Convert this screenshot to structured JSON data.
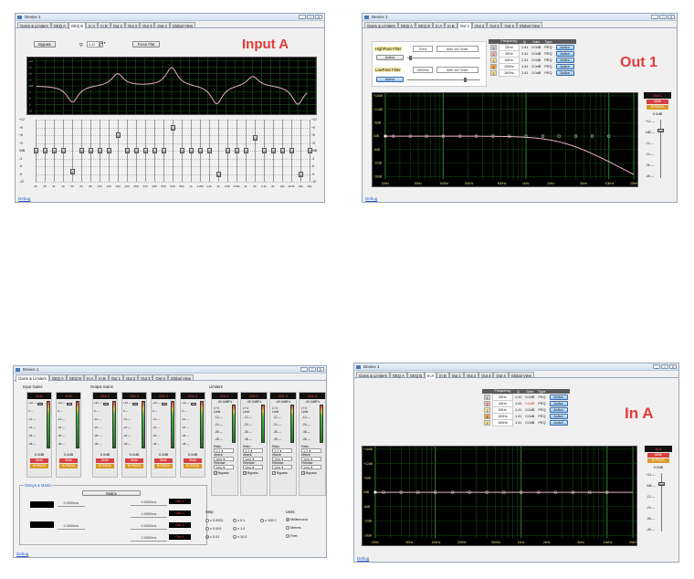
{
  "window_title": "Device 1",
  "title_buttons": [
    "_",
    "□",
    "X"
  ],
  "tabs": [
    "Gains & Limiters",
    "GEQ A",
    "GEQ B",
    "In A",
    "In B",
    "Out 1",
    "Out 2",
    "Out 3",
    "Out 4",
    "Global View"
  ],
  "debug_label": "Debug",
  "panel_geqb": {
    "big_title": "Input A",
    "bypass_label": "Bypass",
    "q_label": "Q:",
    "q_value": "4.32",
    "force_flat_label": "Force Flat",
    "graph_y_labels": [
      "+12",
      "+9",
      "+6",
      "+3",
      "0dB",
      "-3",
      "-6",
      "-9",
      "-12"
    ],
    "slider_scale_left": [
      "+12",
      "+9",
      "+6",
      "+3",
      "0dB",
      "-3",
      "-6",
      "-9",
      "-12"
    ],
    "slider_scale_right": [
      "+12",
      "+9",
      "+6",
      "+3",
      "0dB",
      "-3",
      "-6",
      "-9",
      "-12"
    ],
    "freq_labels": [
      "20",
      "25",
      "31",
      "40",
      "50",
      "63",
      "80",
      "100",
      "125",
      "160",
      "200",
      "250",
      "315",
      "400",
      "500",
      "630",
      "800",
      "1k",
      "1.25k",
      "1.6k",
      "2k",
      "2.5k",
      "3.15k",
      "4k",
      "5k",
      "6.3k",
      "8k",
      "10k",
      "12.5k",
      "16k",
      "20k"
    ],
    "slider_gains": [
      0,
      0,
      0,
      0,
      -8,
      0,
      0,
      0,
      0,
      6,
      0,
      0,
      0,
      0,
      0,
      9,
      0,
      0,
      0,
      0,
      -9,
      0,
      0,
      0,
      5,
      0,
      0,
      0,
      0,
      -9,
      0
    ]
  },
  "panel_out1": {
    "big_title": "Out 1",
    "hp_label": "HighPass Filter",
    "hp_freq": "20Hz",
    "hp_order": "6dB 1st Order",
    "hp_active": "Active",
    "lp_label": "LowPass Filter",
    "lp_freq": "2800Hz",
    "lp_order": "6dB 1st Order",
    "lp_active": "Active",
    "table_headers": [
      "",
      "Frequency",
      "Q",
      "Gain",
      "Type",
      ""
    ],
    "rows": [
      {
        "n": "1",
        "freq": "25Hz",
        "q": "1.41",
        "gain": "0.0dB",
        "type": "PEQ",
        "btn": "Active",
        "color": "#cccccc"
      },
      {
        "n": "2",
        "freq": "40Hz",
        "q": "1.41",
        "gain": "0.0dB",
        "type": "PEQ",
        "btn": "Active",
        "color": "#f2b3b3"
      },
      {
        "n": "3",
        "freq": "63Hz",
        "q": "1.41",
        "gain": "0.0dB",
        "type": "PEQ",
        "btn": "Active",
        "color": "#f4e3a3"
      },
      {
        "n": "4",
        "freq": "100Hz",
        "q": "1.41",
        "gain": "0.0dB",
        "type": "PEQ",
        "btn": "Active",
        "color": "#f0a040"
      },
      {
        "n": "5",
        "freq": "160Hz",
        "q": "1.41",
        "gain": "0.0dB",
        "type": "PEQ",
        "btn": "Active",
        "color": "#f5e090"
      }
    ],
    "graph_y_labels": [
      "+18dB",
      "+12dB",
      "+6dB",
      "0dB",
      "-6dB",
      "-12dB",
      "-18dB"
    ],
    "graph_x_labels": [
      "20Hz",
      "50Hz",
      "100Hz",
      "200Hz",
      "500Hz",
      "1kHz",
      "2kHz",
      "5kHz",
      "10kHz",
      "20kHz"
    ],
    "ch_label": "Out 1",
    "mute": "Mute",
    "bypass": "BYPASS",
    "gain_value": "0.0dB",
    "fader_scale": [
      "+12",
      "0dB",
      "-12",
      "-24",
      "-36",
      "-48"
    ]
  },
  "panel_gains": {
    "input_gains_label": "Input Gains",
    "output_gains_label": "Output Gains",
    "limiters_label": "Limiters",
    "inputs": [
      {
        "name": "In A",
        "gain": "0.0dB"
      },
      {
        "name": "In B",
        "gain": "0.0dB"
      }
    ],
    "outputs": [
      {
        "name": "Out 1",
        "gain": "0.0dB"
      },
      {
        "name": "Out 2",
        "gain": "0.0dB"
      },
      {
        "name": "Out 3",
        "gain": "0.0dB"
      },
      {
        "name": "Out 4",
        "gain": "0.0dB"
      }
    ],
    "limiters": [
      {
        "name": "Out 1",
        "level": "-40.0dBFs",
        "limit": "L+4 Limit",
        "ratio": "1:1",
        "attack": "1ms",
        "release": "1ms",
        "bypass": "Bypass"
      },
      {
        "name": "Out 2",
        "level": "-40.0dBFs",
        "limit": "L+4 Limit",
        "ratio": "1:1",
        "attack": "1ms",
        "release": "1ms",
        "bypass": "Bypass"
      },
      {
        "name": "Out 3",
        "level": "-40.0dBFs",
        "limit": "L+4 Limit",
        "ratio": "1:1",
        "attack": "1ms",
        "release": "1ms",
        "bypass": "Bypass"
      },
      {
        "name": "Out 4",
        "level": "-40.0dBFs",
        "limit": "L+4 Limit",
        "ratio": "1:1",
        "attack": "1ms",
        "release": "1ms",
        "bypass": "Bypass"
      }
    ],
    "meter_scale": [
      "+12",
      "0",
      "-12",
      "-24",
      "-36",
      "-48"
    ],
    "limiter_scale": [
      "-12",
      "-24",
      "-36",
      "-48"
    ],
    "ratio_label": "Ratio:",
    "attack_label": "Attack:",
    "release_label": "Release:",
    "mute": "Mute",
    "bypass": "BYPASS",
    "delays_label": "Delays & Matrix",
    "matrix_label": "Matrix",
    "delay_values": [
      "0.0000ms",
      "0.0000ms",
      "0.0000ms",
      "0.0000ms",
      "0.0000ms",
      "0.0000ms"
    ],
    "out_badges": [
      "Out 1",
      "Out 2",
      "Out 3",
      "Out 4"
    ],
    "step_label": "Step",
    "steps": [
      "x 0.0001",
      "x 0.1",
      "x 100.0",
      "x 0.001",
      "x 1.0",
      "x 0.01",
      "x 10.0"
    ],
    "units_label": "Units",
    "units": [
      "Millisecond",
      "Metres",
      "Feet"
    ]
  },
  "panel_ina": {
    "big_title": "In A",
    "table_headers": [
      "",
      "Frequency",
      "Q",
      "Gain",
      "Type",
      ""
    ],
    "rows": [
      {
        "n": "1",
        "freq": "25Hz",
        "q": "1.41",
        "gain": "0.0dB",
        "type": "PEQ",
        "btn": "Active",
        "color": "#cccccc"
      },
      {
        "n": "2",
        "freq": "40Hz",
        "q": "1.41",
        "gain": "0.0dB",
        "type": "PEQ",
        "btn": "Active",
        "color": "#f2b3b3"
      },
      {
        "n": "3",
        "freq": "63Hz",
        "q": "1.41",
        "gain": "0.0dB",
        "type": "PEQ",
        "btn": "Active",
        "color": "#f4e3a3"
      },
      {
        "n": "4",
        "freq": "100Hz",
        "q": "1.41",
        "gain": "0.0dB",
        "type": "PEQ",
        "btn": "Active",
        "color": "#f0a040"
      },
      {
        "n": "5",
        "freq": "160Hz",
        "q": "1.41",
        "gain": "0.0dB",
        "type": "PEQ",
        "btn": "Active",
        "color": "#f5e090"
      }
    ],
    "graph_y_labels": [
      "+18dB",
      "+12dB",
      "+6dB",
      "0dB",
      "-6dB",
      "-12dB",
      "-18dB"
    ],
    "graph_x_labels": [
      "20Hz",
      "50Hz",
      "100Hz",
      "200Hz",
      "500Hz",
      "1kHz",
      "2kHz",
      "5kHz",
      "10kHz",
      "20kHz"
    ],
    "ch_label": "In A",
    "mute": "Mute",
    "bypass": "BYPASS",
    "gain_value": "0.0dB",
    "fader_scale": [
      "+12",
      "0dB",
      "-12",
      "-24",
      "-36",
      "-48"
    ]
  }
}
